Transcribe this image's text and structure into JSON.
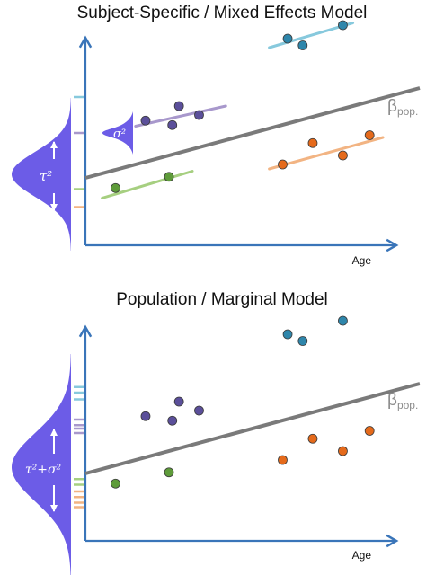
{
  "panels": [
    {
      "title": "Subject-Specific / Mixed Effects Model",
      "x_label": "Age",
      "beta_symbol": "β",
      "beta_subscript": "pop.",
      "variance_label": "τ²",
      "within_variance_label": "σ²",
      "population_line": {
        "x": [
          0,
          100
        ],
        "y": [
          30,
          70
        ]
      },
      "subjects": [
        {
          "color": "#2e86ab",
          "line_color": "#87c9dd",
          "points": [
            {
              "x": 60.5,
              "y": 92
            },
            {
              "x": 65,
              "y": 89
            },
            {
              "x": 77,
              "y": 98
            }
          ],
          "line": {
            "x": [
              55,
              80
            ],
            "y": [
              88,
              99
            ]
          },
          "tick_y": 66
        },
        {
          "color": "#5b4f9a",
          "line_color": "#a898cc",
          "points": [
            {
              "x": 18,
              "y": 55.5
            },
            {
              "x": 28,
              "y": 62
            },
            {
              "x": 26,
              "y": 53.5
            },
            {
              "x": 34,
              "y": 58
            }
          ],
          "line": {
            "x": [
              15,
              42
            ],
            "y": [
              53,
              62
            ]
          },
          "tick_y": 50
        },
        {
          "color": "#e56a1b",
          "line_color": "#f2b483",
          "points": [
            {
              "x": 59,
              "y": 36
            },
            {
              "x": 68,
              "y": 45.5
            },
            {
              "x": 77,
              "y": 40
            },
            {
              "x": 85,
              "y": 49
            }
          ],
          "line": {
            "x": [
              55,
              89
            ],
            "y": [
              34,
              48
            ]
          },
          "tick_y": 17
        },
        {
          "color": "#5e9b3a",
          "line_color": "#a6cf80",
          "points": [
            {
              "x": 9,
              "y": 25.5
            },
            {
              "x": 25,
              "y": 30.5
            }
          ],
          "line": {
            "x": [
              5,
              32
            ],
            "y": [
              21,
              33
            ]
          },
          "tick_y": 25
        }
      ]
    },
    {
      "title": "Population / Marginal Model",
      "x_label": "Age",
      "beta_symbol": "β",
      "beta_subscript": "pop.",
      "variance_label": "τ²+σ²",
      "population_line": {
        "x": [
          0,
          100
        ],
        "y": [
          30,
          70
        ]
      },
      "subjects": [
        {
          "color": "#2e86ab",
          "line_color": "#87c9dd",
          "points": [
            {
              "x": 60.5,
              "y": 92
            },
            {
              "x": 65,
              "y": 89
            },
            {
              "x": 77,
              "y": 98
            }
          ],
          "tick_ys": [
            63,
            66,
            68.5
          ]
        },
        {
          "color": "#5b4f9a",
          "line_color": "#a898cc",
          "points": [
            {
              "x": 18,
              "y": 55.5
            },
            {
              "x": 28,
              "y": 62
            },
            {
              "x": 26,
              "y": 53.5
            },
            {
              "x": 34,
              "y": 58
            }
          ],
          "tick_ys": [
            48,
            50,
            51.5,
            54
          ]
        },
        {
          "color": "#e56a1b",
          "line_color": "#f2b483",
          "points": [
            {
              "x": 59,
              "y": 36
            },
            {
              "x": 68,
              "y": 45.5
            },
            {
              "x": 77,
              "y": 40
            },
            {
              "x": 85,
              "y": 49
            }
          ],
          "tick_ys": [
            15,
            17,
            19.5,
            22
          ]
        },
        {
          "color": "#5e9b3a",
          "line_color": "#a6cf80",
          "points": [
            {
              "x": 9,
              "y": 25.5
            },
            {
              "x": 25,
              "y": 30.5
            }
          ],
          "tick_ys": [
            25,
            27.5
          ]
        }
      ]
    }
  ],
  "colors": {
    "axis": "#3a75b9",
    "population_line": "#7a7a7a",
    "distribution": "#6c5ce7",
    "dot_outline": "#3a3a3a"
  }
}
